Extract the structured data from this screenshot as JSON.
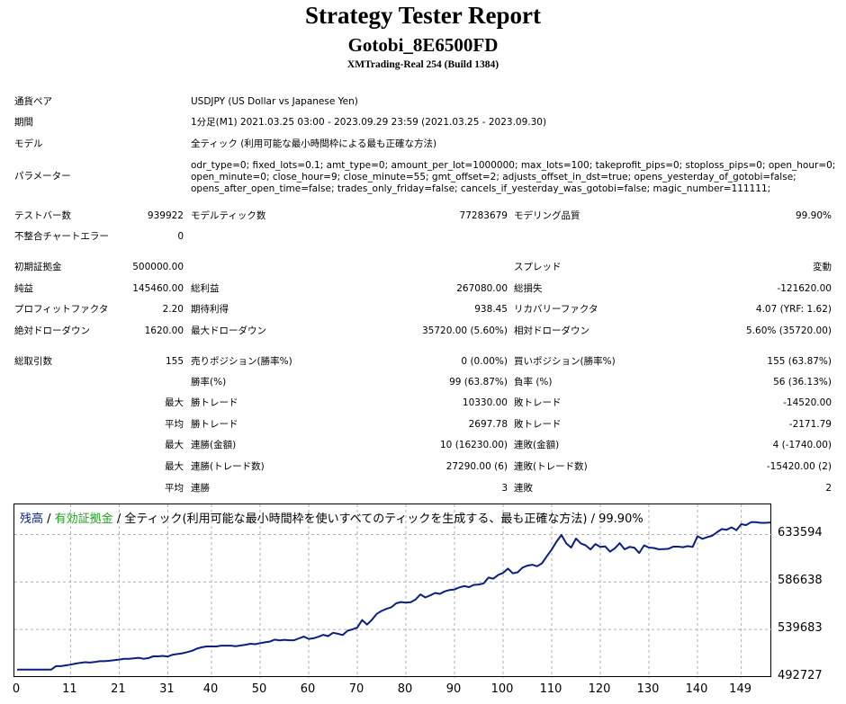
{
  "header": {
    "title": "Strategy Tester Report",
    "subtitle": "Gotobi_8E6500FD",
    "server": "XMTrading-Real 254 (Build 1384)"
  },
  "info": {
    "symbol_label": "通貨ペア",
    "symbol_value": "USDJPY (US Dollar vs Japanese Yen)",
    "period_label": "期間",
    "period_value": "1分足(M1) 2021.03.25 03:00 - 2023.09.29 23:59 (2021.03.25 - 2023.09.30)",
    "model_label": "モデル",
    "model_value": "全ティック (利用可能な最小時間枠による最も正確な方法)",
    "params_label": "パラメーター",
    "params_lines": [
      "odr_type=0; fixed_lots=0.1; amt_type=0; amount_per_lot=1000000; max_lots=100; takeprofit_pips=0; stoploss_pips=0; open_hour=0;",
      "open_minute=0; close_hour=9; close_minute=55; gmt_offset=2; adjusts_offset_in_dst=true; opens_yesterday_of_gotobi=false;",
      "opens_after_open_time=false; trades_only_friday=false; cancels_if_yesterday_was_gotobi=false; magic_number=111111;"
    ]
  },
  "stats": {
    "bars_label": "テストバー数",
    "bars_value": "939922",
    "ticks_label": "モデルティック数",
    "ticks_value": "77283679",
    "quality_label": "モデリング品質",
    "quality_value": "99.90%",
    "mismatch_label": "不整合チャートエラー",
    "mismatch_value": "0",
    "deposit_label": "初期証拠金",
    "deposit_value": "500000.00",
    "spread_label": "スプレッド",
    "spread_value": "変動",
    "net_label": "純益",
    "net_value": "145460.00",
    "gross_profit_label": "総利益",
    "gross_profit_value": "267080.00",
    "gross_loss_label": "総損失",
    "gross_loss_value": "-121620.00",
    "pf_label": "プロフィットファクタ",
    "pf_value": "2.20",
    "payoff_label": "期待利得",
    "payoff_value": "938.45",
    "recovery_label": "リカバリーファクタ",
    "recovery_value": "4.07 (YRF: 1.62)",
    "abs_dd_label": "絶対ドローダウン",
    "abs_dd_value": "1620.00",
    "max_dd_label": "最大ドローダウン",
    "max_dd_value": "35720.00 (5.60%)",
    "rel_dd_label": "相対ドローダウン",
    "rel_dd_value": "5.60% (35720.00)",
    "trades_label": "総取引数",
    "trades_value": "155",
    "short_label": "売りポジション(勝率%)",
    "short_value": "0 (0.00%)",
    "long_label": "買いポジション(勝率%)",
    "long_value": "155 (63.87%)",
    "win_label": "勝率(%)",
    "win_value": "99 (63.87%)",
    "loss_label": "負率 (%)",
    "loss_value": "56 (36.13%)",
    "max_tag": "最大",
    "avg_tag": "平均",
    "largest_win_label": "勝トレード",
    "largest_win_value": "10330.00",
    "largest_loss_label": "敗トレード",
    "largest_loss_value": "-14520.00",
    "avg_win_label": "勝トレード",
    "avg_win_value": "2697.78",
    "avg_loss_label": "敗トレード",
    "avg_loss_value": "-2171.79",
    "max_cons_wins_label": "連勝(金額)",
    "max_cons_wins_value": "10 (16230.00)",
    "max_cons_losses_label": "連敗(金額)",
    "max_cons_losses_value": "4 (-1740.00)",
    "max_cons_profit_label": "連勝(トレード数)",
    "max_cons_profit_value": "27290.00 (6)",
    "max_cons_loss_label": "連敗(トレード数)",
    "max_cons_loss_value": "-15420.00 (2)",
    "avg_cons_wins_label": "連勝",
    "avg_cons_wins_value": "3",
    "avg_cons_losses_label": "連敗",
    "avg_cons_losses_value": "2"
  },
  "chart_legend": {
    "balance": "残高",
    "sep1": " / ",
    "equity": "有効証拠金",
    "rest": " / 全ティック(利用可能な最小時間枠を使いすべてのティックを生成する、最も正確な方法) / 99.90%"
  },
  "colors": {
    "balance": "#0b1f80",
    "equity": "#22a022",
    "grid": "#b0b0b0"
  },
  "chart_data": {
    "type": "line",
    "title": "",
    "xlabel": "",
    "ylabel": "",
    "x_ticks": [
      "0",
      "11",
      "21",
      "31",
      "40",
      "50",
      "60",
      "70",
      "80",
      "90",
      "100",
      "110",
      "120",
      "130",
      "140",
      "149"
    ],
    "y_ticks": [
      "633594",
      "586638",
      "539683",
      "492727"
    ],
    "ylim": [
      492727,
      650000
    ],
    "xlim": [
      0,
      155
    ],
    "grid": true,
    "series": [
      {
        "values": [
          500000,
          500000,
          500000,
          500000,
          500000,
          500000,
          500000,
          500000,
          503500,
          503500,
          504200,
          505000,
          506000,
          506800,
          507400,
          507000,
          507600,
          508400,
          508400,
          508800,
          509400,
          510000,
          510700,
          510700,
          511200,
          511700,
          510800,
          511400,
          513200,
          513200,
          513600,
          513000,
          514800,
          515500,
          516200,
          517300,
          518700,
          520800,
          522100,
          522900,
          522900,
          522900,
          523700,
          523700,
          523700,
          523200,
          523900,
          524600,
          525600,
          525200,
          526200,
          527000,
          527700,
          529700,
          529000,
          529500,
          529100,
          529100,
          530900,
          532700,
          530400,
          531000,
          532500,
          534400,
          533200,
          536400,
          535500,
          534200,
          538500,
          539800,
          541700,
          549100,
          544500,
          549200,
          555200,
          558000,
          560100,
          561700,
          565600,
          566800,
          566300,
          566700,
          569400,
          574400,
          571400,
          573400,
          575800,
          574900,
          577400,
          578700,
          579300,
          581300,
          582600,
          581600,
          583800,
          584200,
          585300,
          591000,
          589900,
          593700,
          595600,
          599900,
          595200,
          596200,
          600900,
          602800,
          603700,
          602200,
          605100,
          612100,
          618700,
          626500,
          633100,
          624800,
          620700,
          629600,
          624800,
          622800,
          618800,
          624100,
          621300,
          621800,
          616600,
          620000,
          625000,
          618900,
          621300,
          620600,
          615300,
          622800,
          620700,
          620200,
          619000,
          619200,
          619400,
          621600,
          621600,
          621000,
          622100,
          621300,
          631900,
          629300,
          631000,
          632300,
          635800,
          639000,
          638300,
          640700,
          637800,
          643800,
          642900,
          645700,
          645700,
          645100,
          645100,
          645460
        ]
      }
    ]
  }
}
